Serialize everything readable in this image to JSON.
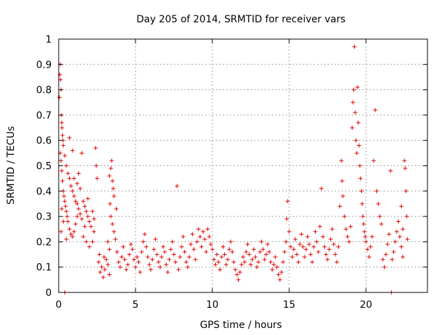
{
  "chart_data": {
    "type": "scatter",
    "title": "Day 205 of 2014, SRMTID for receiver vars",
    "xlabel": "GPS time / hours",
    "ylabel": "SRMTID / TECUs",
    "xlim": [
      0,
      24
    ],
    "ylim": [
      0,
      1
    ],
    "xticks": [
      0,
      5,
      10,
      15,
      20
    ],
    "xtick_labels": [
      "0",
      "5",
      "10",
      "15",
      "20"
    ],
    "yticks": [
      0,
      0.1,
      0.2,
      0.3,
      0.4,
      0.5,
      0.6,
      0.7,
      0.8,
      0.9,
      1
    ],
    "ytick_labels": [
      "0",
      "0.1",
      "0.2",
      "0.3",
      "0.4",
      "0.5",
      "0.6",
      "0.7",
      "0.8",
      "0.9",
      "1"
    ],
    "grid": true,
    "marker": "+",
    "series": [
      {
        "name": "SRMTID",
        "color": "#e00000",
        "points": [
          [
            0.05,
            0.77
          ],
          [
            0.08,
            0.86
          ],
          [
            0.1,
            0.9
          ],
          [
            0.12,
            0.84
          ],
          [
            0.15,
            0.8
          ],
          [
            0.18,
            0.7
          ],
          [
            0.2,
            0.67
          ],
          [
            0.22,
            0.65
          ],
          [
            0.25,
            0.62
          ],
          [
            0.28,
            0.6
          ],
          [
            0.1,
            0.55
          ],
          [
            0.15,
            0.52
          ],
          [
            0.2,
            0.48
          ],
          [
            0.25,
            0.44
          ],
          [
            0.3,
            0.4
          ],
          [
            0.35,
            0.38
          ],
          [
            0.4,
            0.36
          ],
          [
            0.45,
            0.34
          ],
          [
            0.5,
            0.32
          ],
          [
            0.55,
            0.3
          ],
          [
            0.3,
            0.58
          ],
          [
            0.4,
            0.54
          ],
          [
            0.5,
            0.5
          ],
          [
            0.6,
            0.47
          ],
          [
            0.7,
            0.45
          ],
          [
            0.8,
            0.42
          ],
          [
            0.9,
            0.4
          ],
          [
            1.0,
            0.38
          ],
          [
            1.1,
            0.36
          ],
          [
            1.2,
            0.35
          ],
          [
            0.6,
            0.28
          ],
          [
            0.7,
            0.25
          ],
          [
            0.8,
            0.23
          ],
          [
            0.9,
            0.22
          ],
          [
            1.0,
            0.24
          ],
          [
            1.1,
            0.27
          ],
          [
            1.2,
            0.3
          ],
          [
            1.3,
            0.33
          ],
          [
            1.4,
            0.31
          ],
          [
            1.5,
            0.29
          ],
          [
            1.0,
            0.45
          ],
          [
            1.2,
            0.43
          ],
          [
            1.4,
            0.41
          ],
          [
            1.5,
            0.55
          ],
          [
            1.6,
            0.36
          ],
          [
            1.7,
            0.34
          ],
          [
            1.8,
            0.32
          ],
          [
            1.9,
            0.3
          ],
          [
            2.0,
            0.28
          ],
          [
            2.1,
            0.26
          ],
          [
            1.6,
            0.22
          ],
          [
            1.8,
            0.2
          ],
          [
            2.0,
            0.18
          ],
          [
            2.2,
            0.2
          ],
          [
            2.3,
            0.24
          ],
          [
            2.4,
            0.57
          ],
          [
            2.45,
            0.5
          ],
          [
            2.5,
            0.45
          ],
          [
            2.2,
            0.32
          ],
          [
            2.3,
            0.29
          ],
          [
            0.4,
            0.0
          ],
          [
            0.5,
            0.21
          ],
          [
            0.3,
            0.28
          ],
          [
            0.2,
            0.33
          ],
          [
            0.15,
            0.24
          ],
          [
            0.7,
            0.61
          ],
          [
            0.9,
            0.56
          ],
          [
            1.3,
            0.47
          ],
          [
            1.7,
            0.26
          ],
          [
            1.9,
            0.37
          ],
          [
            2.6,
            0.12
          ],
          [
            2.7,
            0.08
          ],
          [
            2.8,
            0.1
          ],
          [
            2.9,
            0.06
          ],
          [
            3.0,
            0.09
          ],
          [
            3.1,
            0.13
          ],
          [
            3.2,
            0.11
          ],
          [
            3.3,
            0.07
          ],
          [
            2.65,
            0.15
          ],
          [
            2.95,
            0.14
          ],
          [
            3.3,
            0.46
          ],
          [
            3.4,
            0.49
          ],
          [
            3.45,
            0.52
          ],
          [
            3.5,
            0.44
          ],
          [
            3.55,
            0.41
          ],
          [
            3.6,
            0.38
          ],
          [
            3.35,
            0.35
          ],
          [
            3.4,
            0.3
          ],
          [
            3.5,
            0.27
          ],
          [
            3.6,
            0.24
          ],
          [
            3.2,
            0.2
          ],
          [
            3.3,
            0.17
          ],
          [
            3.7,
            0.21
          ],
          [
            3.75,
            0.33
          ],
          [
            3.8,
            0.16
          ],
          [
            3.9,
            0.12
          ],
          [
            4.0,
            0.1
          ],
          [
            4.1,
            0.14
          ],
          [
            4.2,
            0.18
          ],
          [
            4.3,
            0.13
          ],
          [
            4.4,
            0.09
          ],
          [
            4.5,
            0.11
          ],
          [
            4.6,
            0.15
          ],
          [
            4.7,
            0.19
          ],
          [
            4.8,
            0.17
          ],
          [
            4.9,
            0.13
          ],
          [
            5.0,
            0.1
          ],
          [
            5.1,
            0.14
          ],
          [
            5.2,
            0.12
          ],
          [
            5.3,
            0.08
          ],
          [
            5.4,
            0.16
          ],
          [
            5.5,
            0.2
          ],
          [
            5.6,
            0.23
          ],
          [
            5.7,
            0.18
          ],
          [
            5.8,
            0.14
          ],
          [
            5.9,
            0.11
          ],
          [
            6.0,
            0.09
          ],
          [
            6.1,
            0.13
          ],
          [
            6.2,
            0.17
          ],
          [
            6.3,
            0.21
          ],
          [
            6.4,
            0.15
          ],
          [
            6.5,
            0.12
          ],
          [
            6.6,
            0.1
          ],
          [
            6.7,
            0.14
          ],
          [
            6.8,
            0.18
          ],
          [
            6.9,
            0.16
          ],
          [
            7.0,
            0.11
          ],
          [
            7.1,
            0.08
          ],
          [
            7.2,
            0.13
          ],
          [
            7.3,
            0.17
          ],
          [
            7.4,
            0.2
          ],
          [
            7.5,
            0.15
          ],
          [
            7.6,
            0.12
          ],
          [
            7.7,
            0.42
          ],
          [
            7.8,
            0.09
          ],
          [
            7.9,
            0.14
          ],
          [
            8.0,
            0.18
          ],
          [
            8.1,
            0.22
          ],
          [
            8.2,
            0.16
          ],
          [
            8.3,
            0.12
          ],
          [
            8.4,
            0.1
          ],
          [
            8.5,
            0.14
          ],
          [
            8.6,
            0.19
          ],
          [
            8.7,
            0.23
          ],
          [
            8.8,
            0.17
          ],
          [
            8.9,
            0.13
          ],
          [
            9.0,
            0.2
          ],
          [
            9.1,
            0.25
          ],
          [
            9.2,
            0.22
          ],
          [
            9.3,
            0.18
          ],
          [
            9.4,
            0.24
          ],
          [
            9.5,
            0.21
          ],
          [
            9.6,
            0.16
          ],
          [
            9.7,
            0.25
          ],
          [
            9.8,
            0.22
          ],
          [
            9.9,
            0.19
          ],
          [
            10.0,
            0.17
          ],
          [
            10.1,
            0.13
          ],
          [
            10.2,
            0.11
          ],
          [
            10.3,
            0.15
          ],
          [
            10.4,
            0.12
          ],
          [
            10.5,
            0.09
          ],
          [
            10.6,
            0.14
          ],
          [
            10.7,
            0.18
          ],
          [
            10.8,
            0.15
          ],
          [
            10.9,
            0.11
          ],
          [
            11.0,
            0.13
          ],
          [
            11.1,
            0.17
          ],
          [
            11.2,
            0.2
          ],
          [
            11.3,
            0.16
          ],
          [
            11.4,
            0.12
          ],
          [
            11.5,
            0.09
          ],
          [
            11.6,
            0.07
          ],
          [
            11.7,
            0.05
          ],
          [
            11.8,
            0.08
          ],
          [
            11.9,
            0.11
          ],
          [
            12.0,
            0.14
          ],
          [
            12.1,
            0.12
          ],
          [
            12.2,
            0.16
          ],
          [
            12.3,
            0.19
          ],
          [
            12.4,
            0.15
          ],
          [
            12.5,
            0.11
          ],
          [
            12.6,
            0.13
          ],
          [
            12.7,
            0.17
          ],
          [
            12.8,
            0.14
          ],
          [
            12.9,
            0.1
          ],
          [
            13.0,
            0.12
          ],
          [
            13.1,
            0.16
          ],
          [
            13.2,
            0.2
          ],
          [
            13.3,
            0.17
          ],
          [
            13.4,
            0.13
          ],
          [
            13.5,
            0.15
          ],
          [
            13.6,
            0.19
          ],
          [
            13.7,
            0.16
          ],
          [
            13.8,
            0.12
          ],
          [
            13.9,
            0.09
          ],
          [
            14.0,
            0.11
          ],
          [
            14.1,
            0.14
          ],
          [
            14.2,
            0.1
          ],
          [
            14.3,
            0.07
          ],
          [
            14.4,
            0.05
          ],
          [
            14.5,
            0.08
          ],
          [
            14.6,
            0.12
          ],
          [
            14.7,
            0.16
          ],
          [
            14.8,
            0.2
          ],
          [
            14.85,
            0.29
          ],
          [
            14.9,
            0.36
          ],
          [
            15.0,
            0.24
          ],
          [
            15.1,
            0.18
          ],
          [
            15.2,
            0.14
          ],
          [
            15.3,
            0.17
          ],
          [
            15.4,
            0.21
          ],
          [
            15.5,
            0.15
          ],
          [
            15.6,
            0.12
          ],
          [
            15.7,
            0.19
          ],
          [
            15.8,
            0.23
          ],
          [
            15.9,
            0.18
          ],
          [
            16.0,
            0.14
          ],
          [
            16.1,
            0.17
          ],
          [
            16.2,
            0.22
          ],
          [
            16.3,
            0.19
          ],
          [
            16.4,
            0.15
          ],
          [
            16.5,
            0.12
          ],
          [
            16.6,
            0.18
          ],
          [
            16.7,
            0.24
          ],
          [
            16.8,
            0.2
          ],
          [
            16.9,
            0.16
          ],
          [
            17.0,
            0.26
          ],
          [
            17.1,
            0.41
          ],
          [
            17.2,
            0.22
          ],
          [
            17.3,
            0.18
          ],
          [
            17.4,
            0.15
          ],
          [
            17.5,
            0.13
          ],
          [
            17.6,
            0.17
          ],
          [
            17.7,
            0.21
          ],
          [
            17.8,
            0.25
          ],
          [
            17.9,
            0.19
          ],
          [
            18.0,
            0.15
          ],
          [
            18.1,
            0.12
          ],
          [
            18.2,
            0.18
          ],
          [
            18.3,
            0.34
          ],
          [
            18.4,
            0.52
          ],
          [
            18.45,
            0.44
          ],
          [
            18.5,
            0.38
          ],
          [
            18.6,
            0.3
          ],
          [
            18.7,
            0.25
          ],
          [
            18.8,
            0.22
          ],
          [
            18.9,
            0.2
          ],
          [
            19.0,
            0.26
          ],
          [
            19.1,
            0.65
          ],
          [
            19.15,
            0.75
          ],
          [
            19.2,
            0.8
          ],
          [
            19.25,
            0.97
          ],
          [
            19.3,
            0.71
          ],
          [
            19.35,
            0.6
          ],
          [
            19.4,
            0.55
          ],
          [
            19.45,
            0.81
          ],
          [
            19.5,
            0.67
          ],
          [
            19.55,
            0.58
          ],
          [
            19.6,
            0.5
          ],
          [
            19.65,
            0.45
          ],
          [
            19.7,
            0.4
          ],
          [
            19.75,
            0.35
          ],
          [
            19.8,
            0.3
          ],
          [
            19.85,
            0.27
          ],
          [
            19.9,
            0.24
          ],
          [
            19.95,
            0.22
          ],
          [
            20.0,
            0.2
          ],
          [
            20.1,
            0.17
          ],
          [
            20.2,
            0.14
          ],
          [
            20.3,
            0.18
          ],
          [
            20.4,
            0.22
          ],
          [
            20.5,
            0.52
          ],
          [
            20.6,
            0.72
          ],
          [
            20.7,
            0.4
          ],
          [
            20.8,
            0.35
          ],
          [
            20.9,
            0.3
          ],
          [
            21.0,
            0.27
          ],
          [
            21.1,
            0.13
          ],
          [
            21.2,
            0.1
          ],
          [
            21.3,
            0.15
          ],
          [
            21.4,
            0.19
          ],
          [
            21.5,
            0.23
          ],
          [
            21.6,
            0.48
          ],
          [
            21.65,
            0.0
          ],
          [
            21.7,
            0.13
          ],
          [
            21.8,
            0.16
          ],
          [
            21.9,
            0.2
          ],
          [
            22.0,
            0.24
          ],
          [
            22.1,
            0.28
          ],
          [
            22.2,
            0.22
          ],
          [
            22.3,
            0.18
          ],
          [
            22.4,
            0.25
          ],
          [
            22.5,
            0.52
          ],
          [
            22.55,
            0.49
          ],
          [
            22.6,
            0.4
          ],
          [
            22.65,
            0.3
          ],
          [
            22.7,
            0.21
          ],
          [
            22.3,
            0.34
          ],
          [
            22.4,
            0.14
          ]
        ]
      }
    ]
  }
}
